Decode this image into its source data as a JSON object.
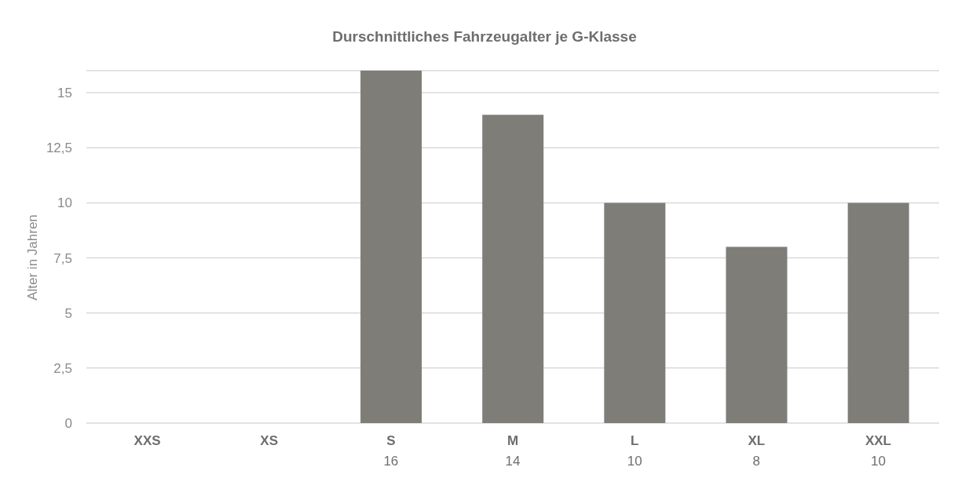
{
  "chart_data": {
    "type": "bar",
    "title": "Durschnittliches Fahrzeugalter je G-Klasse",
    "ylabel": "Alter in Jahren",
    "categories": [
      "XXS",
      "XS",
      "S",
      "M",
      "L",
      "XL",
      "XXL"
    ],
    "values": [
      null,
      null,
      16,
      14,
      10,
      8,
      10
    ],
    "color": "#7f7d78",
    "ylim": [
      0,
      16
    ],
    "yticks": [
      0,
      {
        "value": 2.5,
        "label": "2,5"
      },
      5,
      {
        "value": 7.5,
        "label": "7,5"
      },
      10,
      {
        "value": 12.5,
        "label": "12,5"
      },
      15
    ],
    "grid": "y",
    "data_labels": true,
    "legend": false
  }
}
